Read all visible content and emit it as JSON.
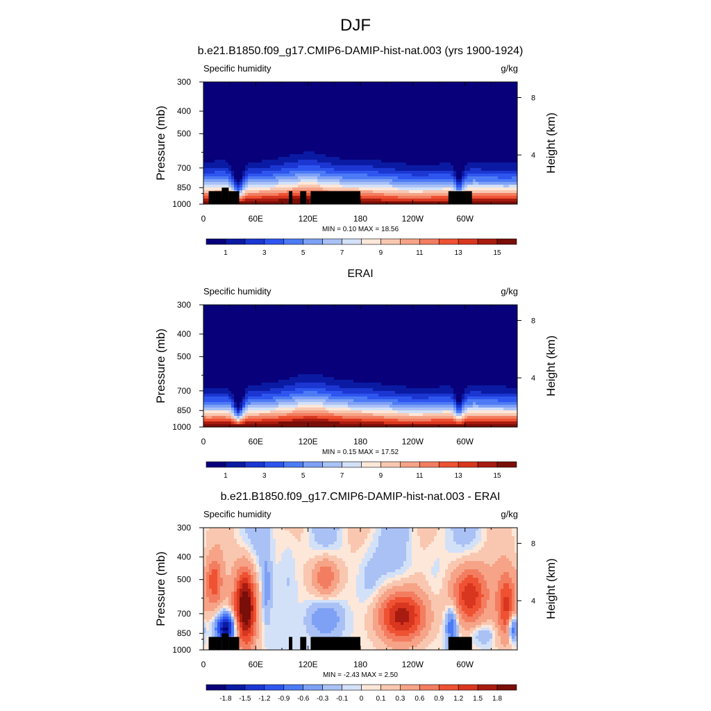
{
  "figure": {
    "title": "DJF"
  },
  "colormaps": {
    "full": [
      "#08007a",
      "#0a1aa3",
      "#1b36d1",
      "#2e55ef",
      "#4d7bf5",
      "#7ea1f6",
      "#a9c1f5",
      "#d3e1f8",
      "#fde7d9",
      "#f9c7b0",
      "#f6a387",
      "#f37d60",
      "#ef5233",
      "#d9361f",
      "#a81b10",
      "#7a0e08"
    ],
    "diff": [
      "#08007a",
      "#0a1aa3",
      "#1b36d1",
      "#2e55ef",
      "#4d7bf5",
      "#7ea1f6",
      "#a9c1f5",
      "#d3e1f8",
      "#fde7d9",
      "#f9c7b0",
      "#f6a387",
      "#f37d60",
      "#ef5233",
      "#d9361f",
      "#a81b10",
      "#7a0e08"
    ]
  },
  "chart_data": [
    {
      "type": "heatmap",
      "panel_title": "b.e21.B1850.f09_g17.CMIP6-DAMIP-hist-nat.003 (yrs 1900-1924)",
      "left_string": "Specific humidity",
      "right_string": "g/kg",
      "ylabel": "Pressure (mb)",
      "ylabel_right": "Height (km)",
      "xticks": [
        "0",
        "60E",
        "120E",
        "180",
        "120W",
        "60W"
      ],
      "yticks": [
        "300",
        "400",
        "500",
        "700",
        "850",
        "1000"
      ],
      "yticks_right": [
        "8",
        "4"
      ],
      "xlim": [
        0,
        360
      ],
      "ylim_mb": [
        1000,
        300
      ],
      "stats": "MIN =   0.10  MAX =  18.56",
      "min": 0.1,
      "max": 18.56,
      "colorbar_labels": [
        "1",
        "3",
        "5",
        "7",
        "9",
        "11",
        "13",
        "15"
      ],
      "levels": [
        0,
        1,
        2,
        3,
        4,
        5,
        6,
        7,
        8,
        9,
        10,
        11,
        12,
        13,
        14,
        15,
        16
      ],
      "field": "mean",
      "variant": "model"
    },
    {
      "type": "heatmap",
      "panel_title": "ERAI",
      "left_string": "Specific humidity",
      "right_string": "g/kg",
      "ylabel": "Pressure (mb)",
      "ylabel_right": "Height (km)",
      "xticks": [
        "0",
        "60E",
        "120E",
        "180",
        "120W",
        "60W"
      ],
      "yticks": [
        "300",
        "400",
        "500",
        "700",
        "850",
        "1000"
      ],
      "yticks_right": [
        "8",
        "4"
      ],
      "xlim": [
        0,
        360
      ],
      "ylim_mb": [
        1000,
        300
      ],
      "stats": "MIN =   0.15  MAX =  17.52",
      "min": 0.15,
      "max": 17.52,
      "colorbar_labels": [
        "1",
        "3",
        "5",
        "7",
        "9",
        "11",
        "13",
        "15"
      ],
      "levels": [
        0,
        1,
        2,
        3,
        4,
        5,
        6,
        7,
        8,
        9,
        10,
        11,
        12,
        13,
        14,
        15,
        16
      ],
      "field": "mean",
      "variant": "obs"
    },
    {
      "type": "heatmap",
      "panel_title": "b.e21.B1850.f09_g17.CMIP6-DAMIP-hist-nat.003 - ERAI",
      "left_string": "Specific humidity",
      "right_string": "g/kg",
      "ylabel": "Pressure (mb)",
      "ylabel_right": "Height (km)",
      "xticks": [
        "0",
        "60E",
        "120E",
        "180",
        "120W",
        "60W"
      ],
      "yticks": [
        "300",
        "400",
        "500",
        "700",
        "850",
        "1000"
      ],
      "yticks_right": [
        "8",
        "4"
      ],
      "xlim": [
        0,
        360
      ],
      "ylim_mb": [
        1000,
        300
      ],
      "stats": "MIN =  -2.43  MAX =   2.50",
      "min": -2.43,
      "max": 2.5,
      "colorbar_labels": [
        "-1.8",
        "-1.5",
        "-1.2",
        "-0.9",
        "-0.6",
        "-0.3",
        "-0.1",
        "0",
        "0.1",
        "0.3",
        "0.6",
        "0.9",
        "1.2",
        "1.5",
        "1.8"
      ],
      "levels": [
        -2.1,
        -1.8,
        -1.5,
        -1.2,
        -0.9,
        -0.6,
        -0.3,
        -0.1,
        0,
        0.1,
        0.3,
        0.6,
        0.9,
        1.2,
        1.5,
        1.8,
        2.1
      ],
      "field": "diff",
      "variant": "diff"
    }
  ]
}
